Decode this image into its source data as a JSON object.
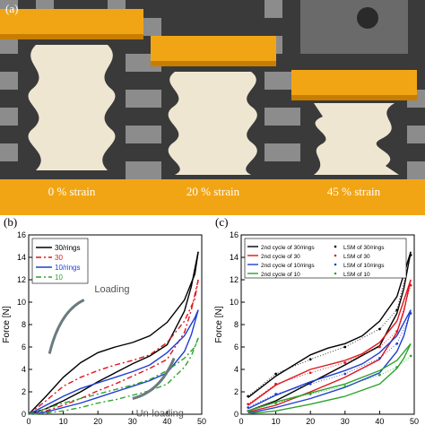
{
  "photo_panel": {
    "label": "(a)",
    "photos": [
      {
        "strain_text": "0 % strain"
      },
      {
        "strain_text": "20 % strain"
      },
      {
        "strain_text": "45 % strain"
      }
    ]
  },
  "chart_data": [
    {
      "panel_label": "(b)",
      "type": "line",
      "xlabel": "Strain [%]",
      "ylabel": "Force [N]",
      "xlim": [
        0,
        50
      ],
      "ylim": [
        0,
        16
      ],
      "xticks": [
        "0",
        "10",
        "20",
        "30",
        "40",
        "50"
      ],
      "yticks": [
        "0",
        "2",
        "4",
        "6",
        "8",
        "10",
        "12",
        "14",
        "16"
      ],
      "annotations": [
        "Loading",
        "Un-loading"
      ],
      "legend_position": "top-left",
      "series": [
        {
          "name": "30/rings",
          "color": "#000000",
          "dash": "solid",
          "loading": [
            [
              0,
              0
            ],
            [
              5,
              1.6
            ],
            [
              10,
              3.3
            ],
            [
              15,
              4.6
            ],
            [
              20,
              5.5
            ],
            [
              25,
              6.0
            ],
            [
              30,
              6.4
            ],
            [
              35,
              7.0
            ],
            [
              40,
              8.2
            ],
            [
              45,
              10.2
            ],
            [
              48,
              12.5
            ],
            [
              49,
              14.5
            ]
          ],
          "unloading": [
            [
              49,
              14.5
            ],
            [
              47,
              11.4
            ],
            [
              45,
              9.2
            ],
            [
              40,
              6.2
            ],
            [
              35,
              5.2
            ],
            [
              30,
              4.5
            ],
            [
              25,
              3.7
            ],
            [
              20,
              2.9
            ],
            [
              15,
              2.0
            ],
            [
              10,
              1.2
            ],
            [
              5,
              0.5
            ],
            [
              0,
              0
            ]
          ]
        },
        {
          "name": "30",
          "color": "#e0141b",
          "dash": "6,3,2,3",
          "loading": [
            [
              0,
              0
            ],
            [
              5,
              1.2
            ],
            [
              10,
              2.5
            ],
            [
              15,
              3.3
            ],
            [
              20,
              3.9
            ],
            [
              25,
              4.4
            ],
            [
              30,
              4.8
            ],
            [
              35,
              5.3
            ],
            [
              40,
              6.4
            ],
            [
              45,
              8.3
            ],
            [
              48,
              10.3
            ],
            [
              49,
              12
            ]
          ],
          "unloading": [
            [
              49,
              12
            ],
            [
              47,
              9.3
            ],
            [
              45,
              7.3
            ],
            [
              40,
              4.9
            ],
            [
              35,
              4.1
            ],
            [
              30,
              3.4
            ],
            [
              25,
              2.7
            ],
            [
              20,
              2.1
            ],
            [
              15,
              1.4
            ],
            [
              10,
              0.8
            ],
            [
              5,
              0.3
            ],
            [
              0,
              0
            ]
          ]
        },
        {
          "name": "10/rings",
          "color": "#1f3fd0",
          "dash": "solid",
          "loading": [
            [
              0,
              0
            ],
            [
              5,
              0.8
            ],
            [
              10,
              1.6
            ],
            [
              15,
              2.3
            ],
            [
              20,
              2.8
            ],
            [
              25,
              3.3
            ],
            [
              30,
              3.8
            ],
            [
              35,
              4.4
            ],
            [
              40,
              5.5
            ],
            [
              45,
              7.0
            ],
            [
              48,
              8.6
            ],
            [
              49,
              9.3
            ]
          ],
          "unloading": [
            [
              49,
              9.3
            ],
            [
              47,
              7.1
            ],
            [
              45,
              5.6
            ],
            [
              40,
              3.7
            ],
            [
              35,
              3.0
            ],
            [
              30,
              2.5
            ],
            [
              25,
              2.0
            ],
            [
              20,
              1.5
            ],
            [
              15,
              1.0
            ],
            [
              10,
              0.6
            ],
            [
              5,
              0.2
            ],
            [
              0,
              0
            ]
          ]
        },
        {
          "name": "10",
          "color": "#2ea32e",
          "dash": "6,3,2,3",
          "loading": [
            [
              0,
              0
            ],
            [
              5,
              0.5
            ],
            [
              10,
              1.0
            ],
            [
              15,
              1.4
            ],
            [
              20,
              1.8
            ],
            [
              25,
              2.2
            ],
            [
              30,
              2.6
            ],
            [
              35,
              3.1
            ],
            [
              40,
              3.9
            ],
            [
              45,
              5.0
            ],
            [
              48,
              6.0
            ],
            [
              49,
              6.8
            ]
          ],
          "unloading": [
            [
              49,
              6.8
            ],
            [
              47,
              5.2
            ],
            [
              45,
              4.2
            ],
            [
              40,
              2.7
            ],
            [
              35,
              2.1
            ],
            [
              30,
              1.7
            ],
            [
              25,
              1.3
            ],
            [
              20,
              1.0
            ],
            [
              15,
              0.6
            ],
            [
              10,
              0.3
            ],
            [
              5,
              0.1
            ],
            [
              0,
              0
            ]
          ]
        }
      ]
    },
    {
      "panel_label": "(c)",
      "type": "line",
      "xlabel": "Strain [%]",
      "ylabel": "Force [N]",
      "xlim": [
        0,
        50
      ],
      "ylim": [
        0,
        16
      ],
      "xticks": [
        "0",
        "10",
        "20",
        "30",
        "40",
        "50"
      ],
      "yticks": [
        "0",
        "2",
        "4",
        "6",
        "8",
        "10",
        "12",
        "14",
        "16"
      ],
      "legend_position": "top",
      "series": [
        {
          "name": "2nd cycle of 30/rings",
          "color": "#000000",
          "loading": [
            [
              2,
              1.5
            ],
            [
              10,
              3.4
            ],
            [
              20,
              5.3
            ],
            [
              25,
              5.9
            ],
            [
              30,
              6.3
            ],
            [
              35,
              7.0
            ],
            [
              40,
              8.3
            ],
            [
              45,
              10.5
            ],
            [
              49,
              14.5
            ]
          ],
          "unloading": [
            [
              49,
              14.5
            ],
            [
              47,
              11.2
            ],
            [
              45,
              9.0
            ],
            [
              40,
              6.1
            ],
            [
              30,
              4.4
            ],
            [
              20,
              2.8
            ],
            [
              10,
              1.2
            ],
            [
              2,
              0.3
            ]
          ]
        },
        {
          "name": "LSM of 30/rings",
          "color": "#000000",
          "marker": "dot",
          "points": [
            [
              2,
              1.6
            ],
            [
              10,
              3.6
            ],
            [
              20,
              4.9
            ],
            [
              30,
              6.0
            ],
            [
              40,
              7.6
            ],
            [
              45,
              9.3
            ],
            [
              49,
              14.2
            ]
          ]
        },
        {
          "name": "2nd cycle of 30",
          "color": "#e0141b",
          "loading": [
            [
              2,
              0.8
            ],
            [
              10,
              2.6
            ],
            [
              20,
              4.0
            ],
            [
              25,
              4.4
            ],
            [
              30,
              4.8
            ],
            [
              35,
              5.4
            ],
            [
              40,
              6.4
            ],
            [
              45,
              8.3
            ],
            [
              49,
              12
            ]
          ],
          "unloading": [
            [
              49,
              12
            ],
            [
              47,
              9.2
            ],
            [
              45,
              7.3
            ],
            [
              40,
              4.9
            ],
            [
              30,
              3.3
            ],
            [
              20,
              2.0
            ],
            [
              10,
              0.8
            ],
            [
              2,
              0.2
            ]
          ]
        },
        {
          "name": "LSM of 30",
          "color": "#e0141b",
          "marker": "dot",
          "points": [
            [
              2,
              0.9
            ],
            [
              10,
              2.7
            ],
            [
              20,
              3.7
            ],
            [
              30,
              4.6
            ],
            [
              40,
              6.0
            ],
            [
              45,
              7.4
            ],
            [
              49,
              11.5
            ]
          ]
        },
        {
          "name": "2nd cycle of 10/rings",
          "color": "#1f3fd0",
          "loading": [
            [
              2,
              0.5
            ],
            [
              10,
              1.7
            ],
            [
              20,
              2.9
            ],
            [
              30,
              3.9
            ],
            [
              35,
              4.5
            ],
            [
              40,
              5.5
            ],
            [
              45,
              7.0
            ],
            [
              49,
              9.3
            ]
          ],
          "unloading": [
            [
              49,
              9.3
            ],
            [
              47,
              7.0
            ],
            [
              45,
              5.6
            ],
            [
              40,
              3.7
            ],
            [
              30,
              2.4
            ],
            [
              20,
              1.4
            ],
            [
              10,
              0.6
            ],
            [
              2,
              0.1
            ]
          ]
        },
        {
          "name": "LSM of 10/rings",
          "color": "#1f3fd0",
          "marker": "dot",
          "points": [
            [
              2,
              0.6
            ],
            [
              10,
              1.8
            ],
            [
              20,
              2.7
            ],
            [
              30,
              3.6
            ],
            [
              40,
              5.0
            ],
            [
              45,
              6.3
            ],
            [
              49,
              9.0
            ]
          ]
        },
        {
          "name": "2nd cycle of 10",
          "color": "#2ea32e",
          "loading": [
            [
              2,
              0.3
            ],
            [
              10,
              1.1
            ],
            [
              20,
              1.9
            ],
            [
              30,
              2.7
            ],
            [
              40,
              3.9
            ],
            [
              45,
              4.8
            ],
            [
              49,
              6.3
            ]
          ],
          "unloading": [
            [
              49,
              6.3
            ],
            [
              47,
              5.0
            ],
            [
              45,
              4.1
            ],
            [
              40,
              2.7
            ],
            [
              30,
              1.6
            ],
            [
              20,
              0.9
            ],
            [
              10,
              0.3
            ],
            [
              2,
              0.05
            ]
          ]
        },
        {
          "name": "LSM of 10",
          "color": "#2ea32e",
          "marker": "dot",
          "points": [
            [
              2,
              0.3
            ],
            [
              10,
              1.0
            ],
            [
              20,
              1.8
            ],
            [
              30,
              2.5
            ],
            [
              40,
              3.5
            ],
            [
              45,
              4.2
            ],
            [
              49,
              5.2
            ]
          ]
        }
      ]
    }
  ]
}
